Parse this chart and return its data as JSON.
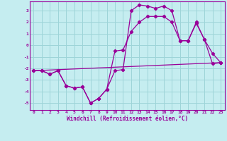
{
  "xlabel": "Windchill (Refroidissement éolien,°C)",
  "bg_color": "#c5edf0",
  "grid_color": "#9dd4d8",
  "line_color": "#990099",
  "line1_x": [
    0,
    1,
    2,
    3,
    4,
    5,
    6,
    7,
    8,
    9,
    10,
    11,
    12,
    13,
    14,
    15,
    16,
    17,
    18,
    19,
    20,
    21,
    22,
    23
  ],
  "line1_y": [
    -2.2,
    -2.2,
    -2.5,
    -2.2,
    -3.5,
    -3.7,
    -3.6,
    -5.0,
    -4.6,
    -3.8,
    -2.2,
    -2.1,
    3.0,
    3.5,
    3.4,
    3.2,
    3.4,
    3.0,
    0.4,
    0.4,
    2.0,
    0.5,
    -1.6,
    -1.5
  ],
  "line2_x": [
    0,
    1,
    2,
    3,
    4,
    5,
    6,
    7,
    8,
    9,
    10,
    11,
    12,
    13,
    14,
    15,
    16,
    17,
    18,
    19,
    20,
    21,
    22,
    23
  ],
  "line2_y": [
    -2.2,
    -2.2,
    -2.5,
    -2.2,
    -3.5,
    -3.7,
    -3.6,
    -5.0,
    -4.6,
    -3.8,
    -0.5,
    -0.4,
    1.2,
    2.0,
    2.5,
    2.5,
    2.5,
    2.0,
    0.4,
    0.4,
    1.9,
    0.5,
    -0.7,
    -1.5
  ],
  "line3_x": [
    0,
    23
  ],
  "line3_y": [
    -2.2,
    -1.5
  ],
  "xlim": [
    -0.5,
    23.5
  ],
  "ylim": [
    -5.6,
    3.8
  ],
  "yticks": [
    -5,
    -4,
    -3,
    -2,
    -1,
    0,
    1,
    2,
    3
  ],
  "xticks": [
    0,
    1,
    2,
    3,
    4,
    5,
    6,
    7,
    8,
    9,
    10,
    11,
    12,
    13,
    14,
    15,
    16,
    17,
    18,
    19,
    20,
    21,
    22,
    23
  ]
}
